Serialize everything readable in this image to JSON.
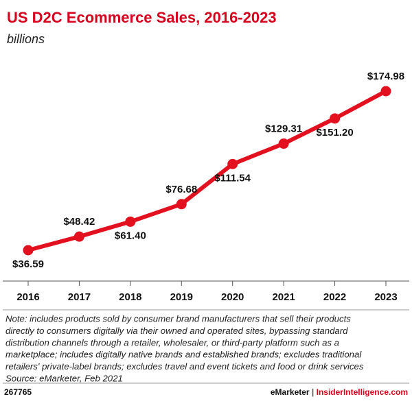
{
  "chart_data": {
    "type": "line",
    "title": "US D2C Ecommerce Sales, 2016-2023",
    "subtitle": "billions",
    "categories": [
      "2016",
      "2017",
      "2018",
      "2019",
      "2020",
      "2021",
      "2022",
      "2023"
    ],
    "values": [
      36.59,
      48.42,
      61.4,
      76.68,
      111.54,
      129.31,
      151.2,
      174.98
    ],
    "value_labels": [
      "$36.59",
      "$48.42",
      "$61.40",
      "$76.68",
      "$111.54",
      "$129.31",
      "$151.20",
      "$174.98"
    ],
    "color": "#e3101f",
    "notes": [
      "Note: includes products sold by consumer brand manufacturers that sell their products",
      "directly to consumers digitally via their owned and operated sites, bypassing standard",
      "distribution channels through a retailer, wholesaler, or third-party platform such as a",
      "marketplace; includes digitally native brands and established brands; excludes traditional",
      "retailers' private-label brands; excludes travel and event tickets and food or drink services",
      "Source: eMarketer, Feb 2021"
    ],
    "footer": {
      "id": "267765",
      "brand": "eMarketer",
      "separator": " | ",
      "site": "InsiderIntelligence.com"
    }
  }
}
